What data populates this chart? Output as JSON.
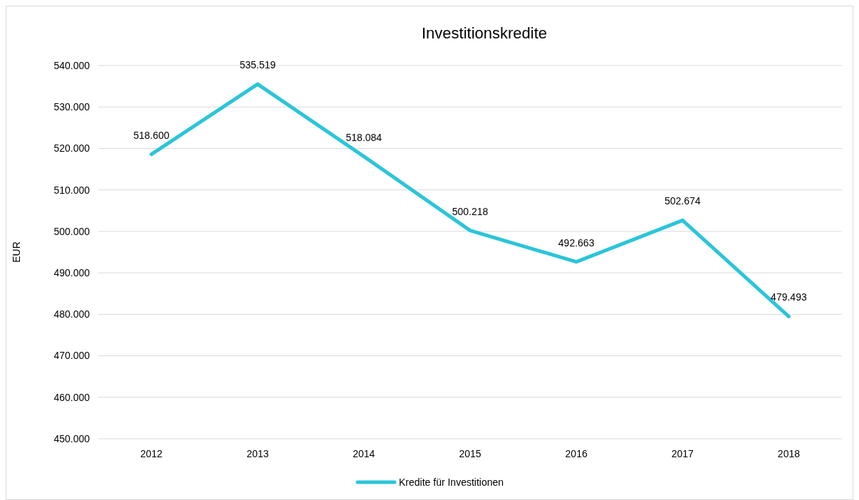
{
  "chart_data": {
    "type": "line",
    "title": "Investitionskredite",
    "ylabel": "EUR",
    "categories": [
      "2012",
      "2013",
      "2014",
      "2015",
      "2016",
      "2017",
      "2018"
    ],
    "series": [
      {
        "name": "Kredite für Investitionen",
        "color": "#2bc5d9",
        "values": [
          518600,
          535519,
          518084,
          500218,
          492663,
          502674,
          479493
        ],
        "value_labels": [
          "518.600",
          "535.519",
          "518.084",
          "500.218",
          "492.663",
          "502.674",
          "479.493"
        ]
      }
    ],
    "ylim": [
      450000,
      540000
    ],
    "yticks": [
      {
        "value": 450000,
        "label": "450.000"
      },
      {
        "value": 460000,
        "label": "460.000"
      },
      {
        "value": 470000,
        "label": "470.000"
      },
      {
        "value": 480000,
        "label": "480.000"
      },
      {
        "value": 490000,
        "label": "490.000"
      },
      {
        "value": 500000,
        "label": "500.000"
      },
      {
        "value": 510000,
        "label": "510.000"
      },
      {
        "value": 520000,
        "label": "520.000"
      },
      {
        "value": 530000,
        "label": "530.000"
      },
      {
        "value": 540000,
        "label": "540.000"
      }
    ],
    "grid": "y",
    "legend": "bottom",
    "marker": "none",
    "line_style": "solid"
  }
}
